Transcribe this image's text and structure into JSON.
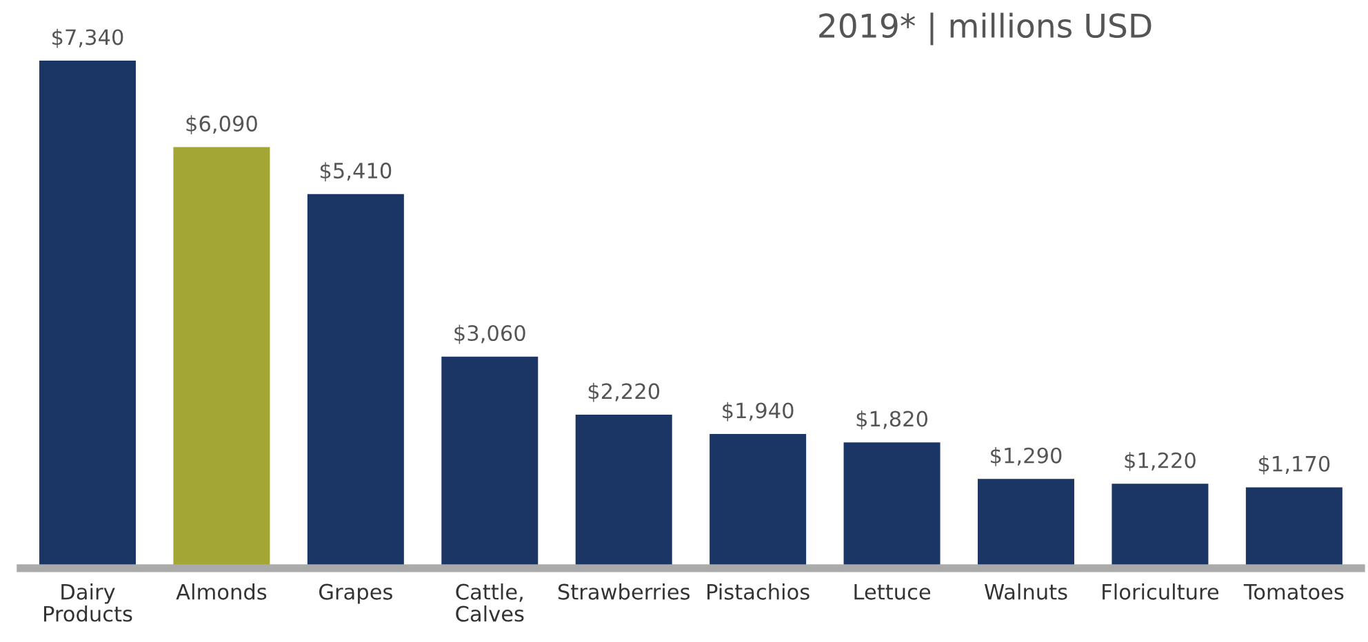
{
  "chart_data": {
    "type": "bar",
    "title": "2019* | millions USD",
    "categories": [
      "Dairy\nProducts",
      "Almonds",
      "Grapes",
      "Cattle,\nCalves",
      "Strawberries",
      "Pistachios",
      "Lettuce",
      "Walnuts",
      "Floriculture",
      "Tomatoes"
    ],
    "values": [
      7340,
      6090,
      5410,
      3060,
      2220,
      1940,
      1820,
      1290,
      1220,
      1170
    ],
    "colors": [
      "#1b3564",
      "#a3a535",
      "#1b3564",
      "#1b3564",
      "#1b3564",
      "#1b3564",
      "#1b3564",
      "#1b3564",
      "#1b3564",
      "#1b3564"
    ],
    "value_labels": [
      "$7,340",
      "$6,090",
      "$5,410",
      "$3,060",
      "$2,220",
      "$1,940",
      "$1,820",
      "$1,290",
      "$1,220",
      "$1,170"
    ],
    "grid": false,
    "legend": false
  }
}
